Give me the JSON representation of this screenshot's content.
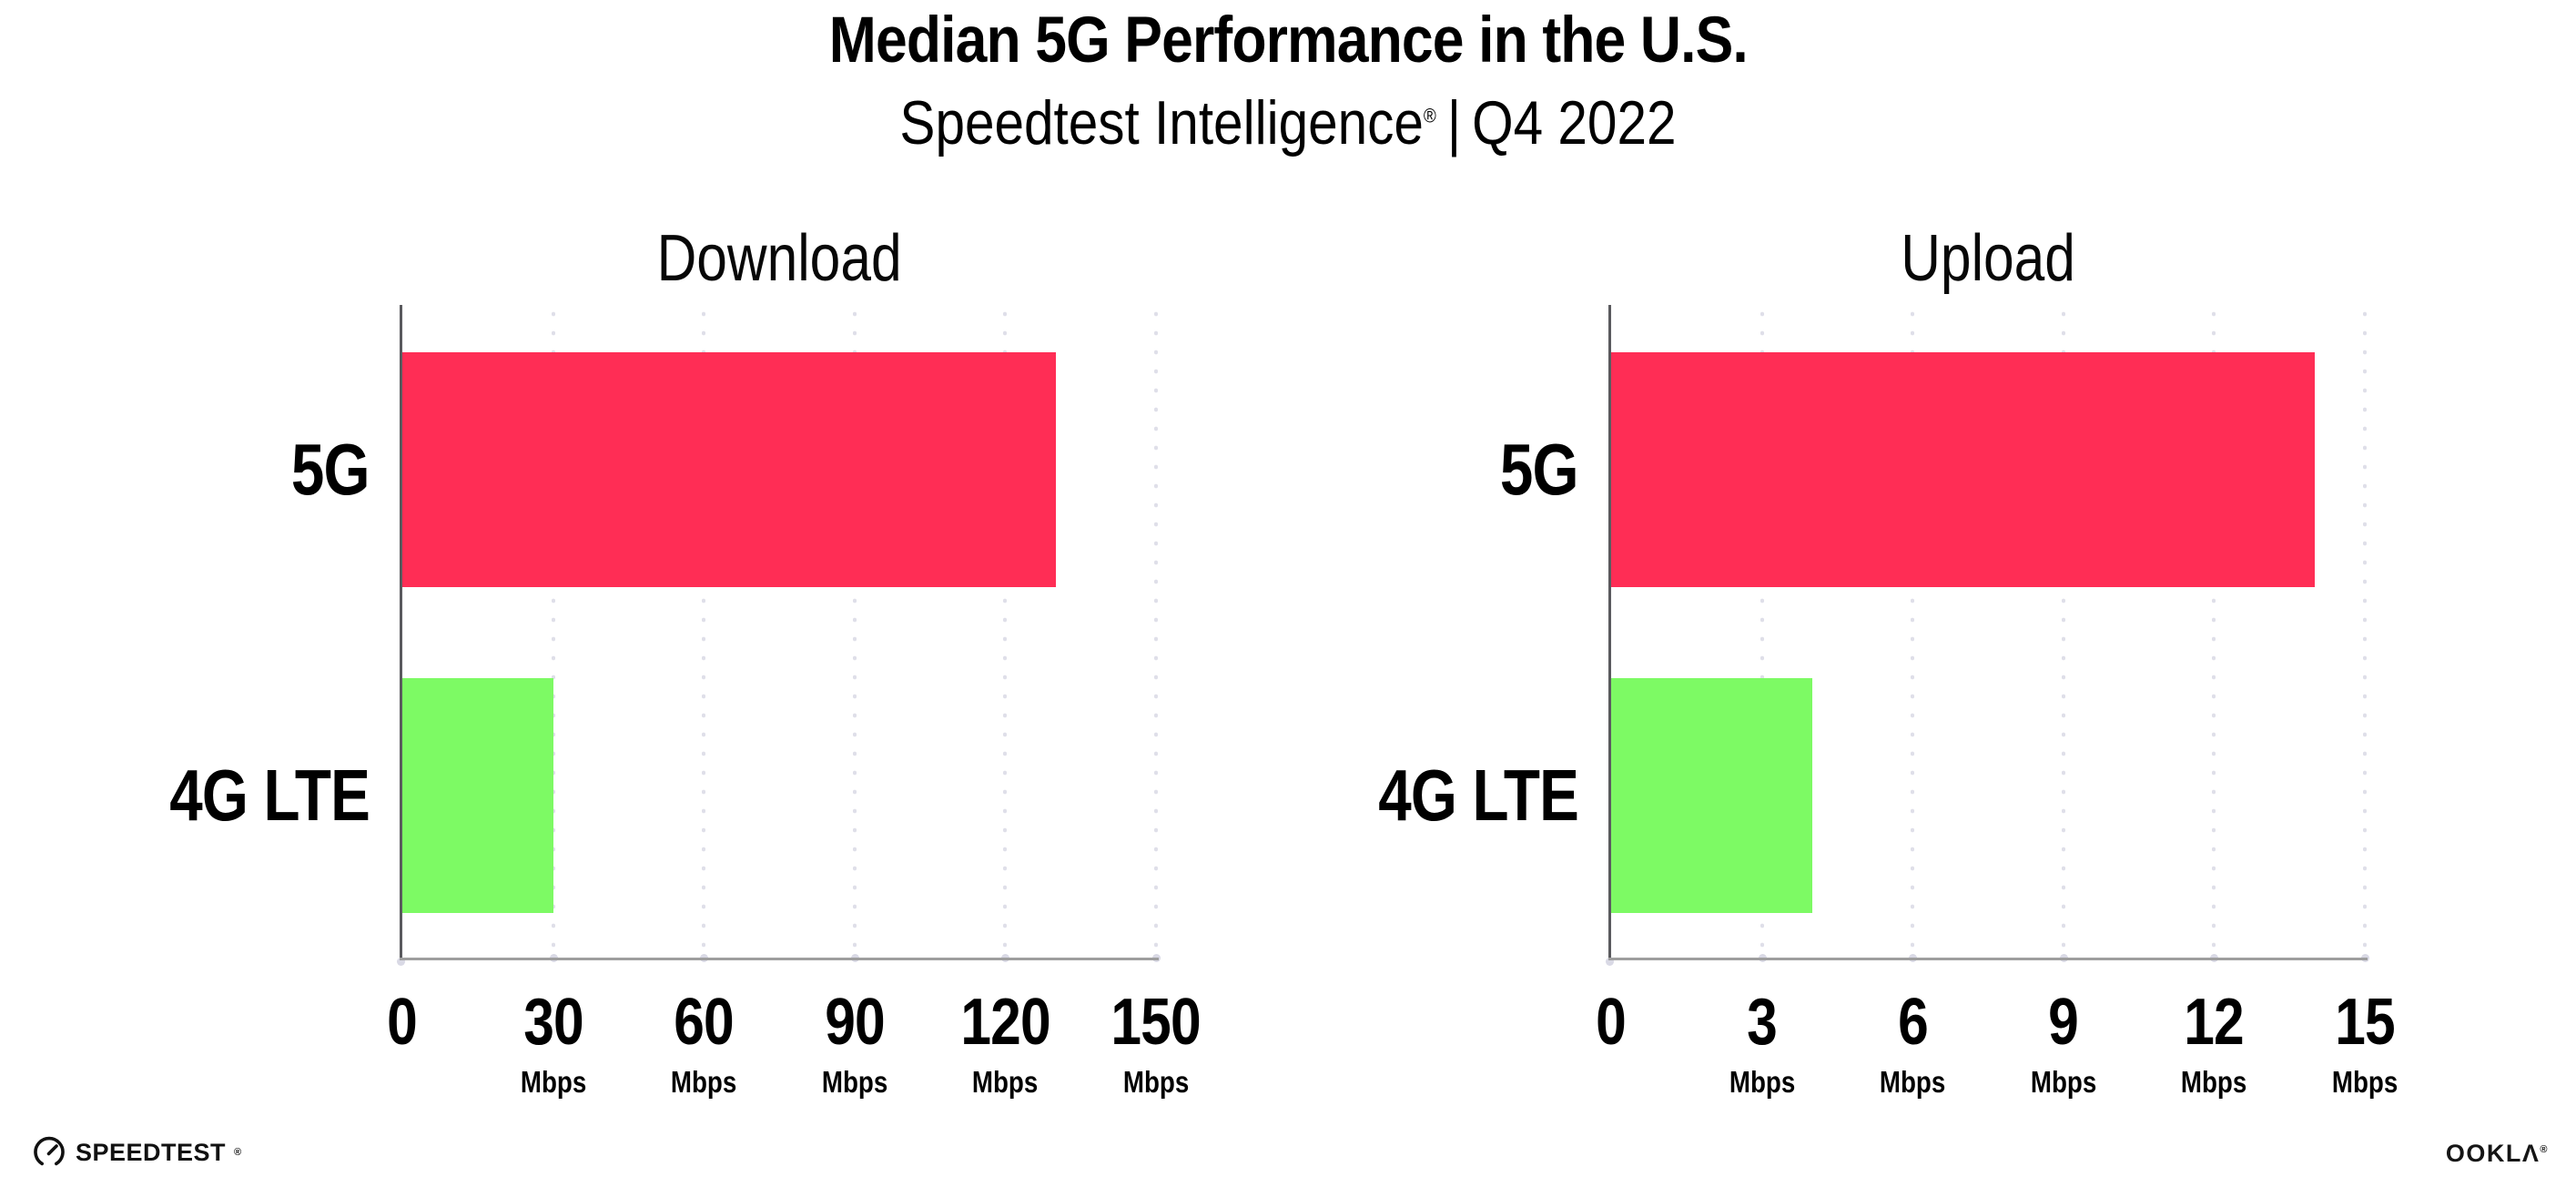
{
  "header": {
    "title": "Median 5G Performance in the U.S.",
    "subtitle_product": "Speedtest Intelligence",
    "subtitle_reg": "®",
    "subtitle_divider": "|",
    "subtitle_period": "Q4 2022"
  },
  "footer": {
    "speedtest_wordmark": "SPEEDTEST",
    "speedtest_reg": "®",
    "ookla_wordmark": "OOKLΛ",
    "ookla_reg": "®"
  },
  "colors": {
    "bar_5g": "#FF2D55",
    "bar_4g_lte": "#7DFA64",
    "y_axis_line": "#5a5a5e",
    "x_axis_line": "#9e9e9e",
    "gridline_dots": "#dfdfe9",
    "text": "#000000"
  },
  "chart_data": [
    {
      "type": "bar",
      "orientation": "horizontal",
      "panel_title": "Download",
      "categories": [
        "5G",
        "4G LTE"
      ],
      "values": [
        130,
        30
      ],
      "unit": "Mbps",
      "xlim": [
        0,
        150
      ],
      "xticks": [
        0,
        30,
        60,
        90,
        120,
        150
      ],
      "grid": "dotted-vertical",
      "legend": "none",
      "bar_colors": [
        "#FF2D55",
        "#7DFA64"
      ]
    },
    {
      "type": "bar",
      "orientation": "horizontal",
      "panel_title": "Upload",
      "categories": [
        "5G",
        "4G LTE"
      ],
      "values": [
        14,
        4
      ],
      "unit": "Mbps",
      "xlim": [
        0,
        15
      ],
      "xticks": [
        0,
        3,
        6,
        9,
        12,
        15
      ],
      "grid": "dotted-vertical",
      "legend": "none",
      "bar_colors": [
        "#FF2D55",
        "#7DFA64"
      ]
    }
  ]
}
